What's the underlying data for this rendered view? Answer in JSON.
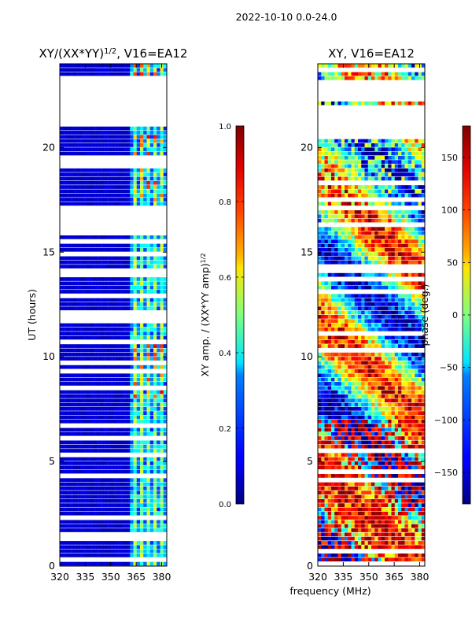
{
  "suptitle": "2022-10-10 0.0-24.0",
  "chart_data": [
    {
      "type": "heatmap",
      "title": "XY/(XX*YY)$^{1/2}$, V16=EA12",
      "title_text": "XY/(XX*YY)",
      "title_sup": "1/2",
      "title_tail": ", V16=EA12",
      "xlabel": "",
      "ylabel": "UT (hours)",
      "xlim": [
        320,
        383
      ],
      "ylim": [
        0,
        24
      ],
      "xticks": [
        320,
        335,
        350,
        365,
        380
      ],
      "yticks": [
        0,
        5,
        10,
        15,
        20
      ],
      "colorbar": {
        "label": "XY amp. / (XX*YY amp)",
        "label_sup": "1/2",
        "vmin": 0.0,
        "vmax": 1.0,
        "ticks": [
          "0.0",
          "0.2",
          "0.4",
          "0.6",
          "0.8",
          "1.0"
        ],
        "tick_values": [
          0.0,
          0.2,
          0.4,
          0.6,
          0.8,
          1.0
        ]
      },
      "blank_hour_bands": [
        [
          21.0,
          22.3
        ],
        [
          22.5,
          23.2
        ],
        [
          16.8,
          17.2
        ]
      ],
      "hot_channels_mhz": [
        364,
        368,
        372,
        376,
        380
      ],
      "hot_hour_bands": [
        [
          8.0,
          10.5
        ],
        [
          17.5,
          20.5
        ],
        [
          22.5,
          24.0
        ]
      ]
    },
    {
      "type": "heatmap",
      "title": "XY, V16=EA12",
      "xlabel": "frequency (MHz)",
      "ylabel": "",
      "xlim": [
        320,
        383
      ],
      "ylim": [
        0,
        24
      ],
      "xticks": [
        320,
        335,
        350,
        365,
        380
      ],
      "yticks": [
        0,
        5,
        10,
        15,
        20
      ],
      "colorbar": {
        "label": "phase (deg.)",
        "vmin": -180,
        "vmax": 180,
        "ticks": [
          "150",
          "100",
          "50",
          "0",
          "−50",
          "−100",
          "−150"
        ],
        "tick_values": [
          150,
          100,
          50,
          0,
          -50,
          -100,
          -150
        ]
      },
      "blank_hour_bands": [
        [
          20.5,
          22.0
        ],
        [
          22.3,
          23.2
        ]
      ]
    }
  ]
}
